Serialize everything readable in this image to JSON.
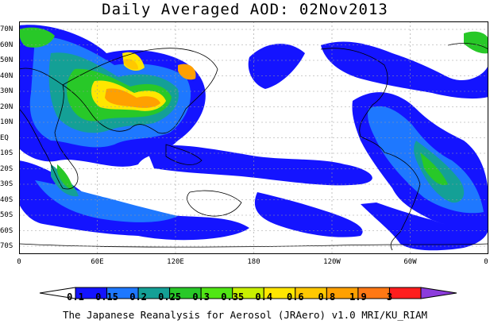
{
  "title": "Daily Averaged AOD: 02Nov2013",
  "footer": "The Japanese Reanalysis for Aerosol (JRAero) v1.0 MRI/KU_RIAM",
  "lat_labels": [
    "70N",
    "60N",
    "50N",
    "40N",
    "30N",
    "20N",
    "10N",
    "EQ",
    "10S",
    "20S",
    "30S",
    "40S",
    "50S",
    "60S",
    "70S"
  ],
  "lon_labels": [
    "0",
    "60E",
    "120E",
    "180",
    "120W",
    "60W",
    "0"
  ],
  "colorbar": {
    "labels": [
      "0.1",
      "0.15",
      "0.2",
      "0.25",
      "0.3",
      "0.35",
      "0.4",
      "0.6",
      "0.8",
      "1.9",
      "3"
    ],
    "colors": [
      "#1414ff",
      "#1e78ff",
      "#14a096",
      "#28c828",
      "#50e614",
      "#c8f000",
      "#ffe600",
      "#ffc800",
      "#ffa000",
      "#ff7814",
      "#ff1e1e"
    ],
    "over_color": "#8c3cdc",
    "under_color": "#ffffff"
  }
}
